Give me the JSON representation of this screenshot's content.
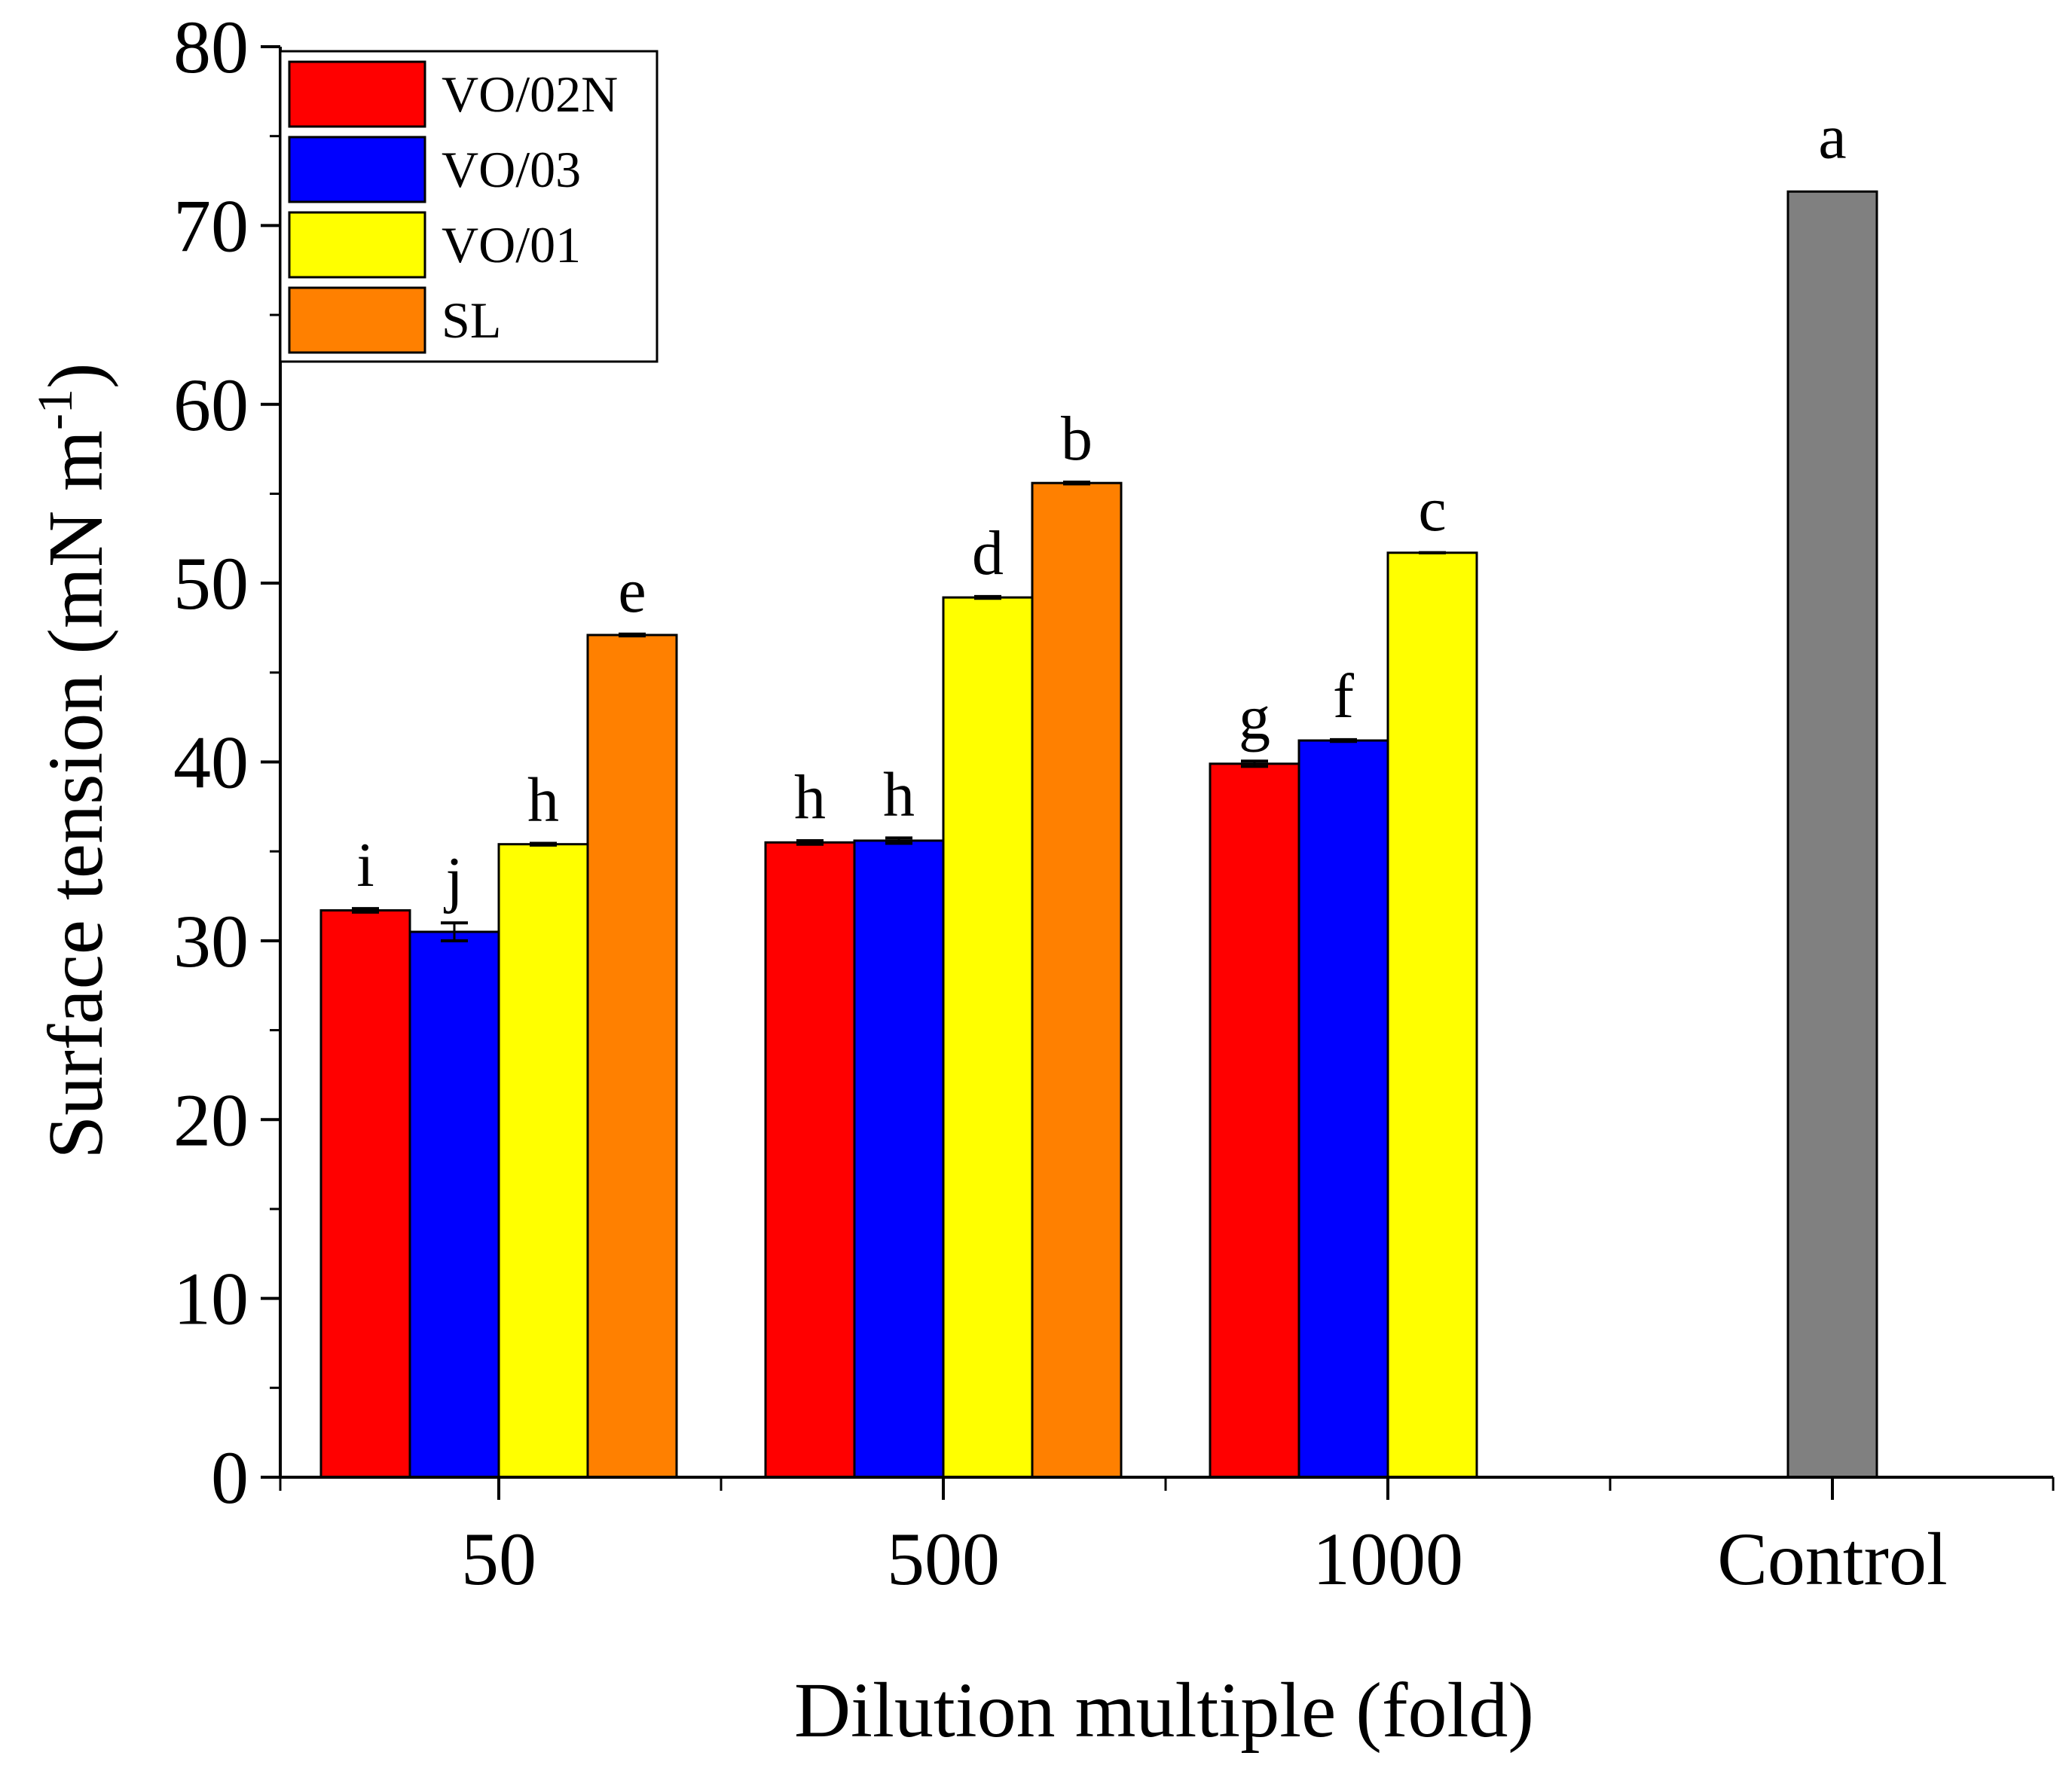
{
  "chart_data": {
    "type": "bar",
    "xlabel": "Dilution multiple (fold)",
    "ylabel_main": "Surface tension (mN m",
    "ylabel_sup": "-1",
    "ylabel_close": ")",
    "ylim": [
      0,
      80
    ],
    "yticks": [
      "0",
      "10",
      "20",
      "30",
      "40",
      "50",
      "60",
      "70",
      "80"
    ],
    "categories": [
      "50",
      "500",
      "1000",
      "Control"
    ],
    "series": [
      {
        "name": "VO/02N",
        "color": "#ff0000",
        "values": [
          31.7,
          35.5,
          39.9,
          null
        ],
        "errors": [
          0.1,
          0.1,
          0.15,
          null
        ],
        "labels": [
          "i",
          "h",
          "g",
          null
        ]
      },
      {
        "name": "VO/03",
        "color": "#0000ff",
        "values": [
          30.5,
          35.6,
          41.2,
          null
        ],
        "errors": [
          0.5,
          0.15,
          0.05,
          null
        ],
        "labels": [
          "j",
          "h",
          "f",
          null
        ]
      },
      {
        "name": "VO/01",
        "color": "#ffff00",
        "values": [
          35.4,
          49.2,
          51.7,
          null
        ],
        "errors": [
          0.05,
          0.05,
          0.0,
          null
        ],
        "labels": [
          "h",
          "d",
          "c",
          null
        ]
      },
      {
        "name": "SL",
        "color": "#ff8000",
        "values": [
          47.1,
          55.6,
          null,
          null
        ],
        "errors": [
          0.05,
          0.05,
          null,
          null
        ],
        "labels": [
          "e",
          "b",
          null,
          null
        ]
      }
    ],
    "control": {
      "value": 71.9,
      "color": "#808080",
      "label": "a"
    },
    "legend": "top-left",
    "grid": false
  }
}
